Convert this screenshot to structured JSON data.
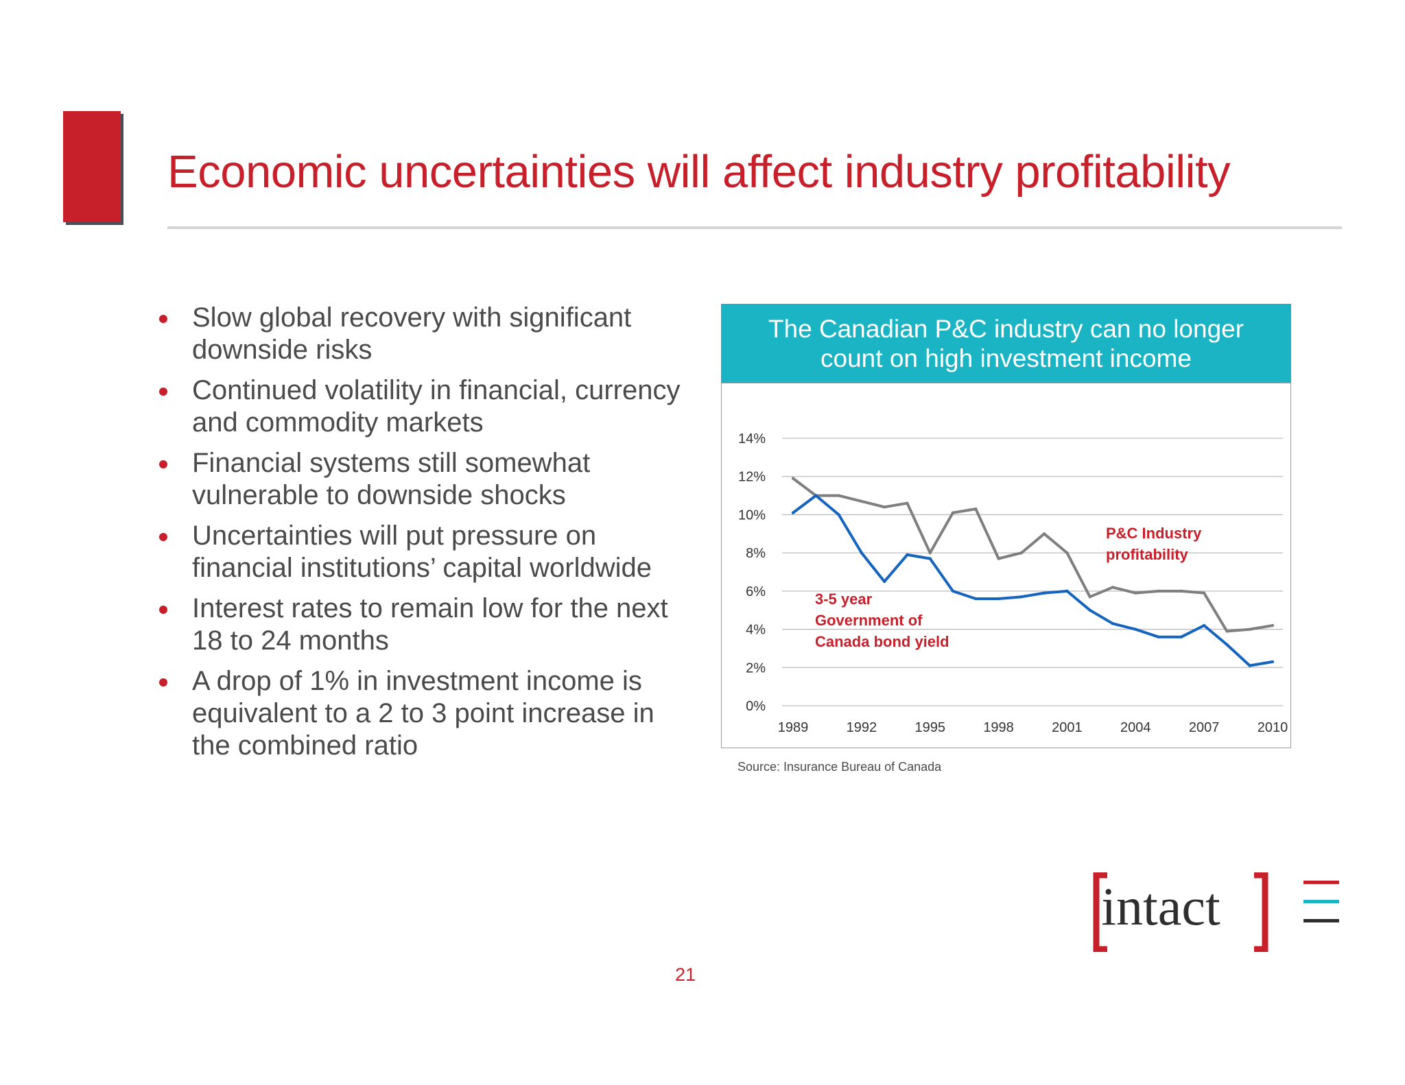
{
  "title": "Economic uncertainties will affect industry profitability",
  "bullets": [
    "Slow global recovery with significant downside risks",
    "Continued volatility in financial, currency and commodity markets",
    "Financial systems still somewhat vulnerable to downside shocks",
    "Uncertainties will put pressure on financial institutions’ capital worldwide",
    "Interest rates to remain low for the next 18 to 24 months",
    "A drop of 1% in investment income is equivalent to a 2 to 3 point increase in the combined ratio"
  ],
  "chart_header": "The Canadian P&C industry can no longer count on high investment income",
  "source": "Source: Insurance Bureau of Canada",
  "logo_text": "intact",
  "page_number": "21",
  "colors": {
    "brand_red": "#c8202b",
    "teal": "#1ab4c4",
    "bond_line": "#1565c0",
    "industry_line": "#7f7f7f"
  },
  "chart_data": {
    "type": "line",
    "x": [
      1989,
      1990,
      1991,
      1992,
      1993,
      1994,
      1995,
      1996,
      1997,
      1998,
      1999,
      2000,
      2001,
      2002,
      2003,
      2004,
      2005,
      2006,
      2007,
      2008,
      2009,
      2010
    ],
    "x_ticks": [
      "1989",
      "1992",
      "1995",
      "1998",
      "2001",
      "2004",
      "2007",
      "2010"
    ],
    "y_ticks": [
      "0%",
      "2%",
      "4%",
      "6%",
      "8%",
      "10%",
      "12%",
      "14%"
    ],
    "ylim": [
      0,
      14
    ],
    "grid": true,
    "series": [
      {
        "name": "P&C Industry profitability",
        "color": "#7f7f7f",
        "values": [
          11.9,
          11.0,
          11.0,
          10.7,
          10.4,
          10.6,
          8.0,
          10.1,
          10.3,
          7.7,
          8.0,
          9.0,
          8.0,
          5.7,
          6.2,
          5.9,
          6.0,
          6.0,
          5.9,
          3.9,
          4.0,
          4.2
        ]
      },
      {
        "name": "3-5 year Government of Canada bond yield",
        "color": "#1565c0",
        "values": [
          10.1,
          11.0,
          10.0,
          8.0,
          6.5,
          7.9,
          7.7,
          6.0,
          5.6,
          5.6,
          5.7,
          5.9,
          6.0,
          5.0,
          4.3,
          4.0,
          3.6,
          3.6,
          4.2,
          3.2,
          2.1,
          2.3
        ]
      }
    ],
    "annotations": [
      {
        "series": 0,
        "lines": [
          "P&C Industry",
          "profitability"
        ]
      },
      {
        "series": 1,
        "lines": [
          "3-5 year",
          "Government of",
          "Canada bond yield"
        ]
      }
    ]
  }
}
